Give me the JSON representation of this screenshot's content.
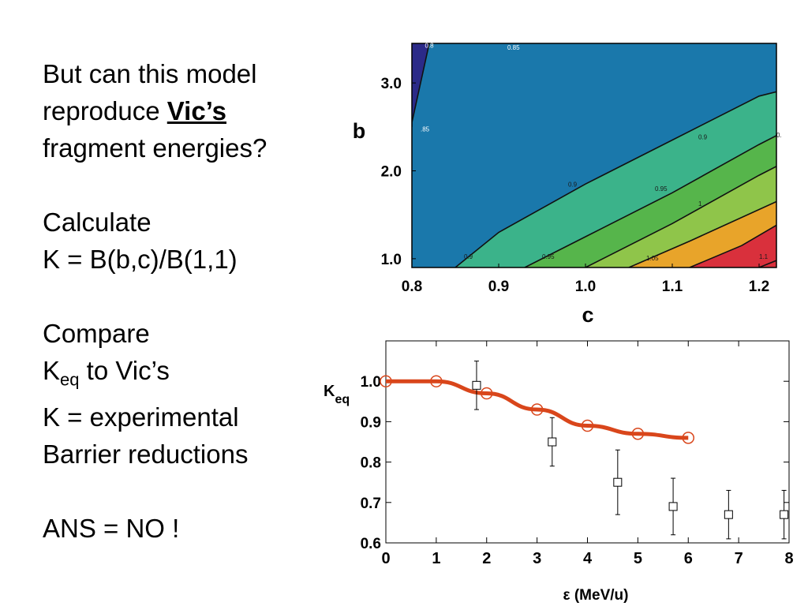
{
  "text": {
    "line1": "But can this model",
    "line2_prefix": "reproduce ",
    "line2_vic": "Vic’s",
    "line3": "fragment energies?",
    "line4": "Calculate",
    "line5": "K = B(b,c)/B(1,1)",
    "line6": "Compare",
    "line7_k": "K",
    "line7_sub": "eq",
    "line7_rest": " to Vic’s",
    "line8": "K = experimental",
    "line9": "Barrier reductions",
    "line10": "ANS = NO !"
  },
  "chart_data": [
    {
      "type": "contour",
      "xlabel": "c",
      "ylabel": "b",
      "xlim": [
        0.8,
        1.22
      ],
      "ylim": [
        0.9,
        3.45
      ],
      "x_ticks": [
        "0.8",
        "0.9",
        "1.0",
        "1.1",
        "1.2"
      ],
      "y_ticks": [
        "1.0",
        "2.0",
        "3.0"
      ],
      "levels": [
        0.8,
        0.85,
        0.9,
        0.95,
        1.0,
        1.05,
        1.1
      ],
      "contour_labels": [
        "0.8",
        "0.85",
        ".85",
        "0.9",
        "0.9",
        "0.9",
        "0.95",
        "0.95",
        "1",
        "1.05",
        "1.1",
        "0."
      ],
      "fill_colors": [
        "#2b2a88",
        "#1a78ab",
        "#3bb38a",
        "#56b54b",
        "#8fc54a",
        "#e8a42a",
        "#d9303c"
      ]
    },
    {
      "type": "line+scatter",
      "xlabel": "ε (MeV/u)",
      "ylabel_main": "K",
      "ylabel_sub": "eq",
      "xlim": [
        0,
        8
      ],
      "ylim": [
        0.6,
        1.1
      ],
      "x_ticks": [
        "0",
        "1",
        "2",
        "3",
        "4",
        "5",
        "6",
        "7",
        "8"
      ],
      "y_ticks": [
        "0.6",
        "0.7",
        "0.8",
        "0.9",
        "1.0"
      ],
      "series": [
        {
          "marker": "circle",
          "color": "#d9461b",
          "x": [
            0,
            1,
            2,
            3,
            4,
            5,
            6
          ],
          "y": [
            1.0,
            1.0,
            0.97,
            0.93,
            0.89,
            0.87,
            0.86
          ]
        },
        {
          "marker": "square",
          "color": "#000000",
          "x": [
            1.8,
            3.3,
            4.6,
            5.7,
            6.8,
            7.9
          ],
          "y": [
            0.99,
            0.85,
            0.75,
            0.69,
            0.67,
            0.67
          ],
          "err": [
            0.06,
            0.06,
            0.08,
            0.07,
            0.06,
            0.06
          ]
        }
      ]
    }
  ]
}
